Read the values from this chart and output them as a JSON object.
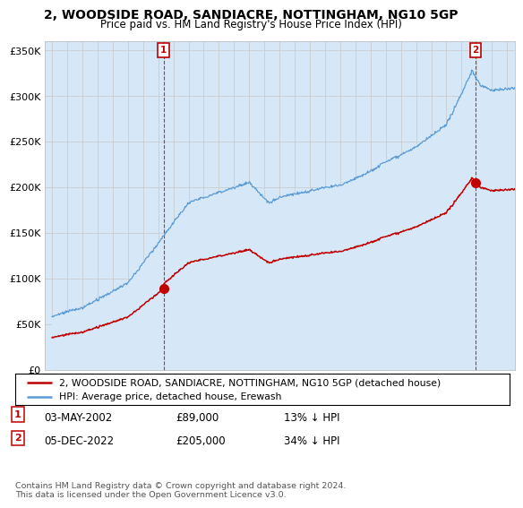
{
  "title": "2, WOODSIDE ROAD, SANDIACRE, NOTTINGHAM, NG10 5GP",
  "subtitle": "Price paid vs. HM Land Registry's House Price Index (HPI)",
  "ylabel_ticks": [
    "£0",
    "£50K",
    "£100K",
    "£150K",
    "£200K",
    "£250K",
    "£300K",
    "£350K"
  ],
  "ytick_values": [
    0,
    50000,
    100000,
    150000,
    200000,
    250000,
    300000,
    350000
  ],
  "ylim": [
    0,
    360000
  ],
  "hpi_color": "#5b9bd5",
  "hpi_fill_color": "#d6e8f7",
  "price_color": "#c00000",
  "sale1_x": 2002.35,
  "sale1_y": 89000,
  "sale2_x": 2022.92,
  "sale2_y": 205000,
  "legend_line1": "2, WOODSIDE ROAD, SANDIACRE, NOTTINGHAM, NG10 5GP (detached house)",
  "legend_line2": "HPI: Average price, detached house, Erewash",
  "footnote": "Contains HM Land Registry data © Crown copyright and database right 2024.\nThis data is licensed under the Open Government Licence v3.0.",
  "background_color": "#ffffff",
  "grid_color": "#c8c8c8",
  "xlim_left": 1994.5,
  "xlim_right": 2025.5
}
